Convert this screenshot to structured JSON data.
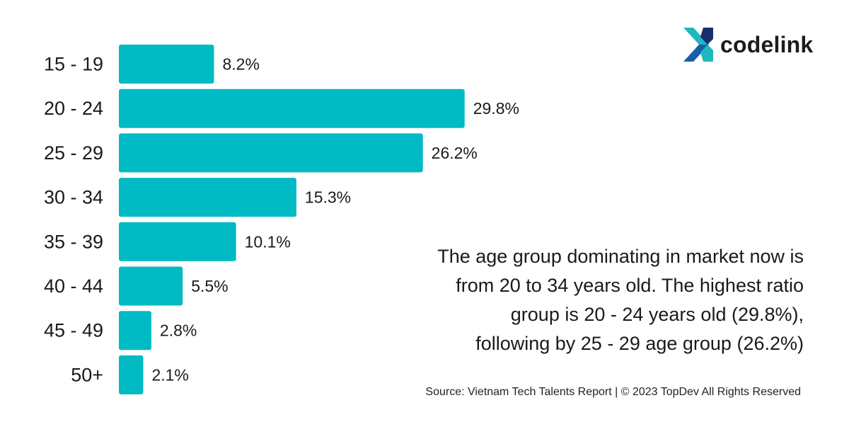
{
  "brand": {
    "name": "codelink",
    "colors": {
      "teal": "#1fb7c0",
      "blue": "#1b5ea8",
      "navy": "#16306b"
    }
  },
  "chart_data": {
    "type": "bar",
    "orientation": "horizontal",
    "categories": [
      "15 - 19",
      "20 - 24",
      "25 - 29",
      "30 - 34",
      "35 - 39",
      "40 - 44",
      "45 - 49",
      "50+"
    ],
    "values": [
      8.2,
      29.8,
      26.2,
      15.3,
      10.1,
      5.5,
      2.8,
      2.1
    ],
    "value_labels": [
      "8.2%",
      "29.8%",
      "26.2%",
      "15.3%",
      "10.1%",
      "5.5%",
      "2.8%",
      "2.1%"
    ],
    "unit": "%",
    "bar_color": "#00bac4",
    "xlim": [
      0,
      30
    ],
    "grid": false,
    "legend": "none"
  },
  "annotation": {
    "lines": [
      "The age group dominating in market now is",
      "from 20 to 34 years old. The highest ratio",
      "group is 20 - 24 years old (29.8%),",
      "following by 25 - 29 age group (26.2%)"
    ]
  },
  "source": "Source: Vietnam Tech Talents Report | © 2023 TopDev All Rights Reserved"
}
